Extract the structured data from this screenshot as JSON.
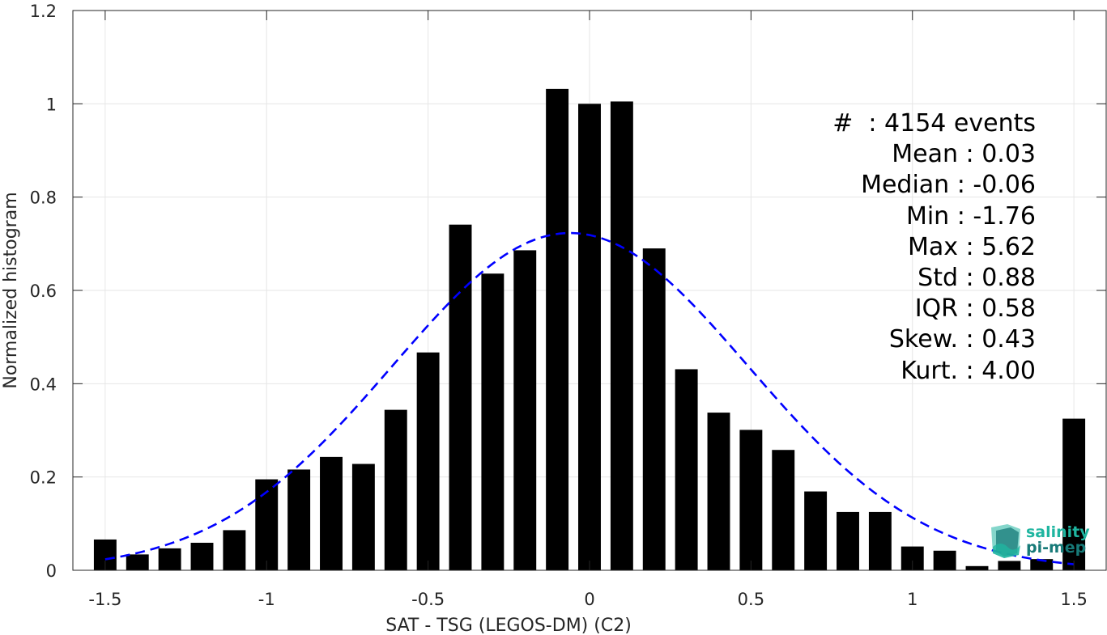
{
  "chart_data": {
    "type": "bar",
    "xlabel": "SAT - TSG (LEGOS-DM) (C2)",
    "ylabel": "Normalized histogram",
    "xlim": [
      -1.6,
      1.6
    ],
    "ylim": [
      0,
      1.2
    ],
    "xticks": [
      -1.5,
      -1,
      -0.5,
      0,
      0.5,
      1,
      1.5
    ],
    "xtick_labels": [
      "-1.5",
      "-1",
      "-0.5",
      "0",
      "0.5",
      "1",
      "1.5"
    ],
    "yticks": [
      0,
      0.2,
      0.4,
      0.6,
      0.8,
      1,
      1.2
    ],
    "ytick_labels": [
      "0",
      "0.2",
      "0.4",
      "0.6",
      "0.8",
      "1",
      "1.2"
    ],
    "grid": true,
    "bar_color": "#000000",
    "bar_width": 0.07,
    "bins": [
      -1.5,
      -1.4,
      -1.3,
      -1.2,
      -1.1,
      -1.0,
      -0.9,
      -0.8,
      -0.7,
      -0.6,
      -0.5,
      -0.4,
      -0.3,
      -0.2,
      -0.1,
      0.0,
      0.1,
      0.2,
      0.3,
      0.4,
      0.5,
      0.6,
      0.7,
      0.8,
      0.9,
      1.0,
      1.1,
      1.2,
      1.3,
      1.4,
      1.5
    ],
    "values": [
      0.066,
      0.034,
      0.047,
      0.059,
      0.086,
      0.195,
      0.216,
      0.243,
      0.228,
      0.344,
      0.467,
      0.741,
      0.636,
      0.686,
      1.032,
      1.0,
      1.005,
      0.69,
      0.431,
      0.338,
      0.301,
      0.258,
      0.169,
      0.125,
      0.125,
      0.051,
      0.042,
      0.009,
      0.02,
      0.024,
      0.325
    ],
    "fit_curve": {
      "type": "gaussian",
      "style": "dashed",
      "color": "#0000ff",
      "mean": -0.06,
      "std": 0.55,
      "peak": 0.723,
      "x_range": [
        -1.5,
        1.5
      ]
    },
    "stats": [
      "#  : 4154 events",
      "Mean : 0.03",
      "Median : -0.06",
      "Min : -1.76",
      "Max : 5.62",
      "Std : 0.88",
      "IQR : 0.58",
      "Skew. : 0.43",
      "Kurt. : 4.00"
    ]
  },
  "logo": {
    "line1": "salinity",
    "line2": "pi-mep",
    "colors": {
      "light": "#1fb5a0",
      "dark": "#177a78"
    }
  }
}
